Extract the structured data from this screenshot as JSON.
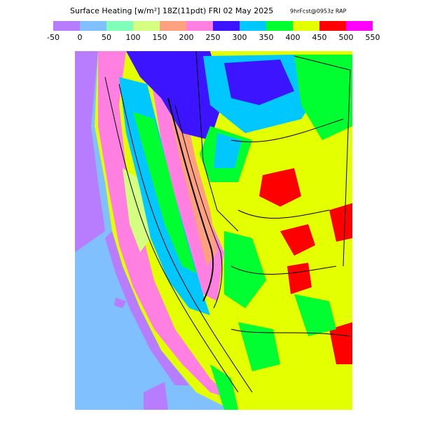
{
  "header": {
    "title": "Surface Heating [w/m²] 18Z(11pdt) FRI 02 May 2025",
    "forecast": "9hrFcst@0953z RAP"
  },
  "colorbar": {
    "colors": [
      "#b87cff",
      "#80c0ff",
      "#80ffb8",
      "#d4ff80",
      "#ffa080",
      "#ff80e0",
      "#3c14ff",
      "#00c8ff",
      "#00ff30",
      "#e4ff00",
      "#ff0000",
      "#ff00ff"
    ],
    "ticks": [
      -50,
      0,
      50,
      100,
      150,
      200,
      250,
      300,
      350,
      400,
      450,
      500,
      550
    ]
  }
}
